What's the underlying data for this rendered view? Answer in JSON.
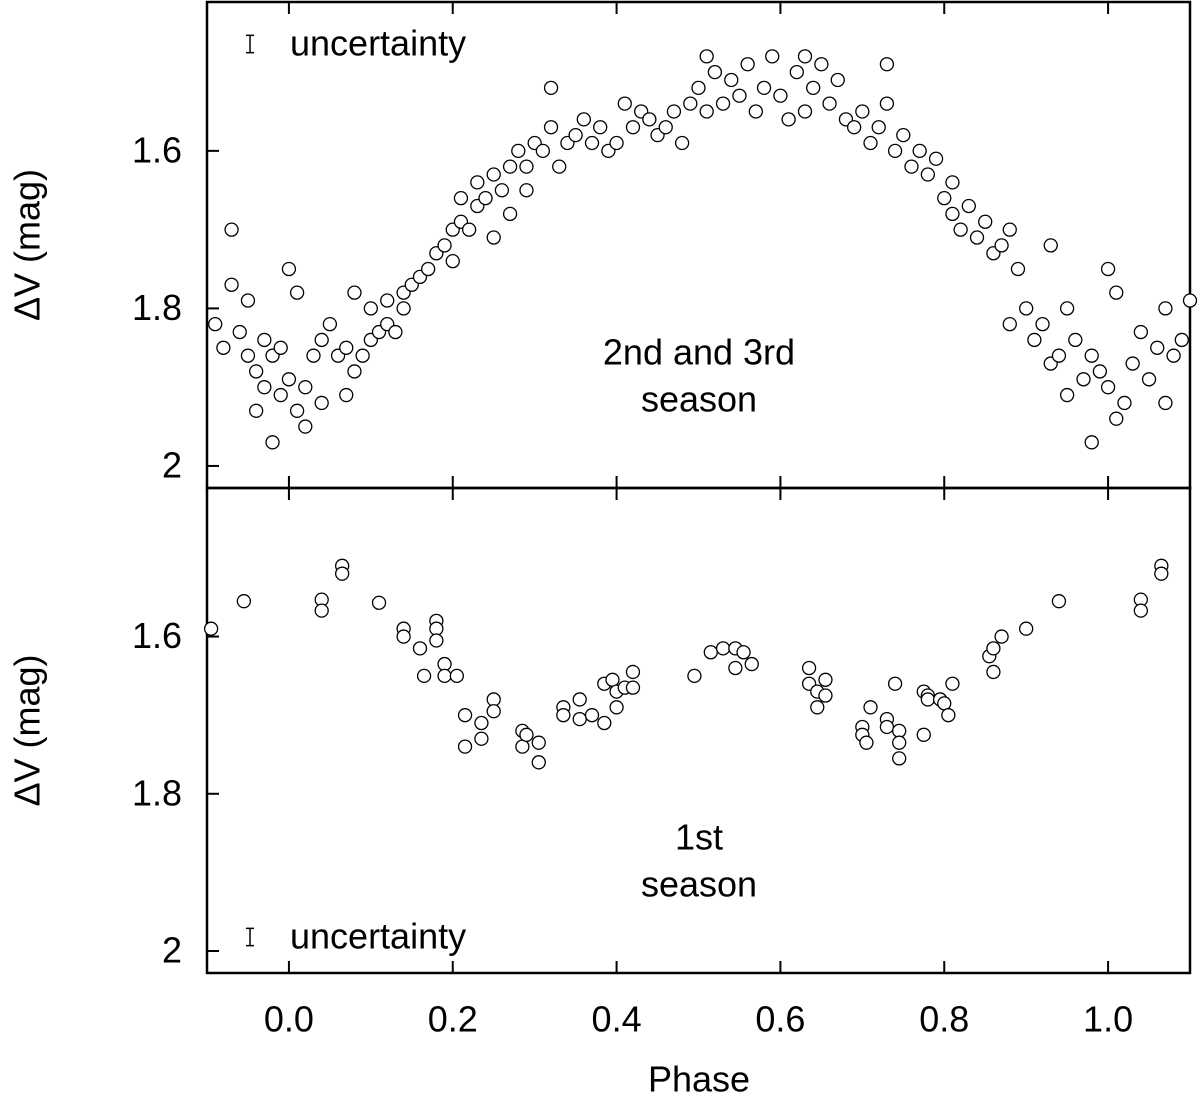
{
  "chart_data": [
    {
      "type": "scatter",
      "ylabel": "ΔV (mag)",
      "annotation": [
        "2nd and 3rd",
        "season"
      ],
      "uncertainty": {
        "label": "uncertainty",
        "error": 0.011
      },
      "marker_color": "#ffffff",
      "marker_edge": "#000000",
      "y_inverted": true,
      "xlim": [
        -0.1,
        1.1
      ],
      "ylim": [
        1.411,
        2.028
      ],
      "xticks": [
        0,
        0.2,
        0.4,
        0.6,
        0.8,
        1
      ],
      "yticks": [
        1.6,
        1.8,
        2
      ],
      "x": [
        -0.09,
        -0.08,
        -0.07,
        -0.07,
        -0.06,
        -0.05,
        -0.05,
        -0.04,
        -0.04,
        -0.03,
        -0.03,
        -0.02,
        -0.02,
        -0.01,
        -0.01,
        0.0,
        0.0,
        0.01,
        0.01,
        0.02,
        0.02,
        0.03,
        0.04,
        0.04,
        0.05,
        0.06,
        0.07,
        0.07,
        0.08,
        0.08,
        0.09,
        0.1,
        0.1,
        0.11,
        0.12,
        0.12,
        0.13,
        0.14,
        0.14,
        0.15,
        0.16,
        0.17,
        0.18,
        0.19,
        0.2,
        0.2,
        0.21,
        0.21,
        0.22,
        0.23,
        0.23,
        0.24,
        0.25,
        0.25,
        0.26,
        0.27,
        0.27,
        0.28,
        0.29,
        0.29,
        0.3,
        0.31,
        0.32,
        0.32,
        0.33,
        0.34,
        0.35,
        0.36,
        0.37,
        0.38,
        0.39,
        0.4,
        0.41,
        0.42,
        0.43,
        0.44,
        0.45,
        0.46,
        0.47,
        0.48,
        0.49,
        0.5,
        0.51,
        0.51,
        0.52,
        0.53,
        0.54,
        0.55,
        0.56,
        0.57,
        0.58,
        0.59,
        0.6,
        0.61,
        0.62,
        0.63,
        0.63,
        0.64,
        0.65,
        0.66,
        0.67,
        0.68,
        0.69,
        0.7,
        0.71,
        0.72,
        0.73,
        0.73,
        0.74,
        0.75,
        0.76,
        0.77,
        0.78,
        0.79,
        0.8,
        0.81,
        0.81,
        0.82,
        0.83,
        0.84,
        0.85,
        0.86,
        0.87,
        0.88,
        0.88,
        0.89,
        0.9,
        0.91,
        0.92,
        0.93,
        0.93,
        0.94,
        0.95,
        0.95,
        0.96,
        0.97,
        0.98,
        0.98,
        0.99,
        1.0,
        1.0,
        1.01,
        1.01,
        1.02,
        1.03,
        1.04,
        1.05,
        1.06,
        1.07,
        1.07,
        1.08,
        1.09,
        1.1
      ],
      "values": [
        1.82,
        1.85,
        1.7,
        1.77,
        1.83,
        1.86,
        1.79,
        1.88,
        1.93,
        1.9,
        1.84,
        1.97,
        1.86,
        1.91,
        1.85,
        1.75,
        1.89,
        1.78,
        1.93,
        1.9,
        1.95,
        1.86,
        1.92,
        1.84,
        1.82,
        1.86,
        1.85,
        1.91,
        1.78,
        1.88,
        1.86,
        1.8,
        1.84,
        1.83,
        1.82,
        1.79,
        1.83,
        1.78,
        1.8,
        1.77,
        1.76,
        1.75,
        1.73,
        1.72,
        1.74,
        1.7,
        1.69,
        1.66,
        1.7,
        1.64,
        1.67,
        1.66,
        1.63,
        1.71,
        1.65,
        1.62,
        1.68,
        1.6,
        1.62,
        1.65,
        1.59,
        1.6,
        1.57,
        1.52,
        1.62,
        1.59,
        1.58,
        1.56,
        1.59,
        1.57,
        1.6,
        1.59,
        1.54,
        1.57,
        1.55,
        1.56,
        1.58,
        1.57,
        1.55,
        1.59,
        1.54,
        1.52,
        1.48,
        1.55,
        1.5,
        1.54,
        1.51,
        1.53,
        1.49,
        1.55,
        1.52,
        1.48,
        1.53,
        1.56,
        1.5,
        1.48,
        1.55,
        1.52,
        1.49,
        1.54,
        1.51,
        1.56,
        1.57,
        1.55,
        1.59,
        1.57,
        1.54,
        1.49,
        1.6,
        1.58,
        1.62,
        1.6,
        1.63,
        1.61,
        1.66,
        1.64,
        1.68,
        1.7,
        1.67,
        1.71,
        1.69,
        1.73,
        1.72,
        1.7,
        1.82,
        1.75,
        1.8,
        1.84,
        1.82,
        1.87,
        1.72,
        1.86,
        1.8,
        1.91,
        1.84,
        1.89,
        1.97,
        1.86,
        1.88,
        1.75,
        1.9,
        1.78,
        1.94,
        1.92,
        1.87,
        1.83,
        1.89,
        1.85,
        1.8,
        1.92,
        1.86,
        1.84,
        1.79
      ]
    },
    {
      "type": "scatter",
      "ylabel": "ΔV (mag)",
      "xlabel": "Phase",
      "annotation": [
        "1st",
        "season"
      ],
      "uncertainty": {
        "label": "uncertainty",
        "error": 0.011
      },
      "marker_color": "#ffffff",
      "marker_edge": "#000000",
      "y_inverted": true,
      "xlim": [
        -0.1,
        1.1
      ],
      "ylim": [
        1.411,
        2.028
      ],
      "xticks": [
        {
          "value": 0,
          "label": "0.0"
        },
        0.2,
        0.4,
        0.6,
        0.8,
        {
          "value": 1,
          "label": "1.0"
        }
      ],
      "yticks": [
        1.6,
        1.8,
        2
      ],
      "x": [
        -0.095,
        -0.055,
        0.04,
        0.04,
        0.065,
        0.065,
        0.11,
        0.14,
        0.14,
        0.16,
        0.165,
        0.18,
        0.18,
        0.18,
        0.19,
        0.19,
        0.205,
        0.215,
        0.215,
        0.235,
        0.235,
        0.25,
        0.25,
        0.285,
        0.285,
        0.29,
        0.305,
        0.305,
        0.335,
        0.335,
        0.355,
        0.355,
        0.37,
        0.385,
        0.385,
        0.395,
        0.4,
        0.4,
        0.41,
        0.42,
        0.42,
        0.495,
        0.515,
        0.53,
        0.545,
        0.545,
        0.555,
        0.565,
        0.635,
        0.635,
        0.645,
        0.645,
        0.655,
        0.655,
        0.7,
        0.7,
        0.705,
        0.71,
        0.73,
        0.73,
        0.74,
        0.745,
        0.745,
        0.745,
        0.775,
        0.775,
        0.78,
        0.78,
        0.795,
        0.8,
        0.805,
        0.81,
        0.855,
        0.86,
        0.86,
        0.87,
        0.9,
        0.94,
        1.04,
        1.04,
        1.065,
        1.065
      ],
      "values": [
        1.59,
        1.555,
        1.553,
        1.567,
        1.51,
        1.52,
        1.557,
        1.59,
        1.6,
        1.615,
        1.65,
        1.58,
        1.59,
        1.605,
        1.635,
        1.65,
        1.65,
        1.7,
        1.74,
        1.71,
        1.73,
        1.68,
        1.695,
        1.72,
        1.74,
        1.725,
        1.735,
        1.76,
        1.69,
        1.7,
        1.68,
        1.705,
        1.7,
        1.66,
        1.71,
        1.655,
        1.67,
        1.69,
        1.665,
        1.645,
        1.665,
        1.65,
        1.62,
        1.615,
        1.615,
        1.64,
        1.62,
        1.635,
        1.64,
        1.66,
        1.67,
        1.69,
        1.655,
        1.675,
        1.715,
        1.725,
        1.735,
        1.69,
        1.705,
        1.715,
        1.66,
        1.72,
        1.735,
        1.755,
        1.67,
        1.725,
        1.675,
        1.68,
        1.68,
        1.685,
        1.7,
        1.66,
        1.625,
        1.645,
        1.615,
        1.6,
        1.59,
        1.555,
        1.553,
        1.567,
        1.51,
        1.52
      ]
    }
  ]
}
